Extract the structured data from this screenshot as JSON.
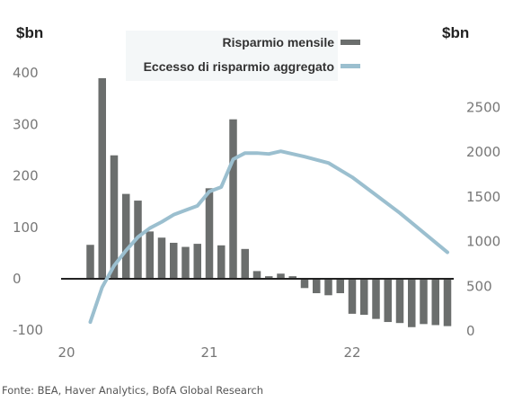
{
  "chart_data": {
    "type": "bar+line",
    "left_axis": {
      "unit_label": "$bn",
      "ticks": [
        400,
        300,
        200,
        100,
        0,
        -100
      ],
      "range": [
        -100,
        400
      ]
    },
    "right_axis": {
      "unit_label": "$bn",
      "ticks": [
        2500,
        2000,
        1500,
        1000,
        500,
        0
      ],
      "range": [
        0,
        2500
      ]
    },
    "x_axis": {
      "tick_labels": [
        "20",
        "21",
        "22"
      ]
    },
    "legend": {
      "placement": "top-center",
      "items": [
        {
          "label": "Risparmio mensile",
          "marker": "bar",
          "color": "#6b6e6d"
        },
        {
          "label": "Eccesso di risparmio aggregato",
          "marker": "line",
          "color": "#9bbfcf"
        }
      ]
    },
    "series": [
      {
        "name": "Risparmio mensile",
        "type": "bar",
        "axis": "left",
        "color": "#6b6e6d",
        "x": [
          "2020-03",
          "2020-04",
          "2020-05",
          "2020-06",
          "2020-07",
          "2020-08",
          "2020-09",
          "2020-10",
          "2020-11",
          "2020-12",
          "2021-01",
          "2021-02",
          "2021-03",
          "2021-04",
          "2021-05",
          "2021-06",
          "2021-07",
          "2021-08",
          "2021-09",
          "2021-10",
          "2021-11",
          "2021-12",
          "2022-01",
          "2022-02",
          "2022-03",
          "2022-04",
          "2022-05",
          "2022-06",
          "2022-07",
          "2022-08",
          "2022-09"
        ],
        "values": [
          66,
          390,
          240,
          165,
          152,
          92,
          80,
          70,
          62,
          68,
          176,
          65,
          310,
          58,
          15,
          5,
          10,
          5,
          -18,
          -28,
          -32,
          -28,
          -68,
          -70,
          -78,
          -84,
          -86,
          -94,
          -88,
          -90,
          -92
        ]
      },
      {
        "name": "Eccesso di risparmio aggregato",
        "type": "line",
        "axis": "right",
        "color": "#9bbfcf",
        "x": [
          "2020-03",
          "2020-04",
          "2020-05",
          "2020-06",
          "2020-07",
          "2020-08",
          "2020-09",
          "2020-10",
          "2020-11",
          "2020-12",
          "2021-01",
          "2021-02",
          "2021-03",
          "2021-04",
          "2021-05",
          "2021-06",
          "2021-07",
          "2021-09",
          "2021-11",
          "2022-01",
          "2022-03",
          "2022-05",
          "2022-07",
          "2022-09"
        ],
        "values": [
          100,
          490,
          730,
          900,
          1050,
          1150,
          1220,
          1300,
          1350,
          1400,
          1560,
          1610,
          1920,
          1990,
          1990,
          1980,
          2010,
          1950,
          1880,
          1720,
          1520,
          1320,
          1100,
          880
        ]
      }
    ]
  },
  "footer": {
    "source": "Fonte: BEA, Haver Analytics, BofA Global Research"
  }
}
